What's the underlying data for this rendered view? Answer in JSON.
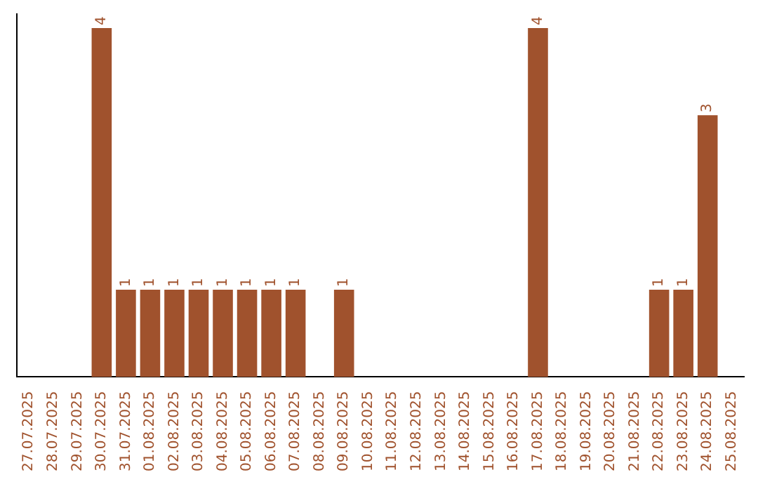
{
  "chart_data": {
    "type": "bar",
    "categories": [
      "27.07.2025",
      "28.07.2025",
      "29.07.2025",
      "30.07.2025",
      "31.07.2025",
      "01.08.2025",
      "02.08.2025",
      "03.08.2025",
      "04.08.2025",
      "05.08.2025",
      "06.08.2025",
      "07.08.2025",
      "08.08.2025",
      "09.08.2025",
      "10.08.2025",
      "11.08.2025",
      "12.08.2025",
      "13.08.2025",
      "14.08.2025",
      "15.08.2025",
      "16.08.2025",
      "17.08.2025",
      "18.08.2025",
      "19.08.2025",
      "20.08.2025",
      "21.08.2025",
      "22.08.2025",
      "23.08.2025",
      "24.08.2025",
      "25.08.2025"
    ],
    "values": [
      null,
      null,
      null,
      4,
      1,
      1,
      1,
      1,
      1,
      1,
      1,
      1,
      null,
      1,
      null,
      null,
      null,
      null,
      null,
      null,
      null,
      4,
      null,
      null,
      null,
      null,
      1,
      1,
      3,
      null
    ],
    "color": "#a0522d",
    "ylim": [
      0,
      4.16
    ],
    "data_labels": true,
    "tick_labels": "x"
  }
}
